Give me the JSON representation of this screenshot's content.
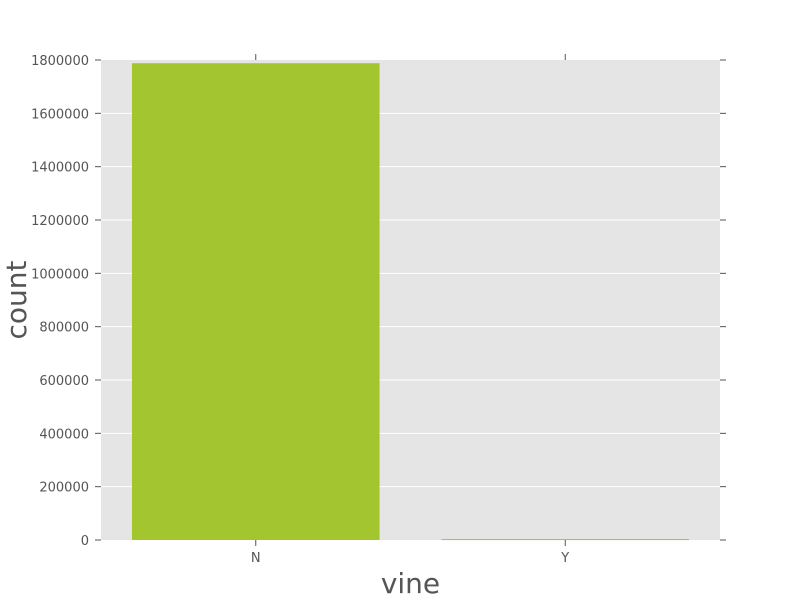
{
  "chart_data": {
    "type": "bar",
    "title": "",
    "xlabel": "vine",
    "ylabel": "count",
    "categories": [
      "N",
      "Y"
    ],
    "values": [
      1788000,
      3500
    ],
    "ylim": [
      0,
      1800000
    ],
    "yticks": [
      0,
      200000,
      400000,
      600000,
      800000,
      1000000,
      1200000,
      1400000,
      1600000,
      1800000
    ],
    "ytick_labels": [
      "0",
      "200000",
      "400000",
      "600000",
      "800000",
      "1000000",
      "1200000",
      "1400000",
      "1600000",
      "1800000"
    ],
    "grid": true,
    "legend": "none",
    "colors": {
      "bar": "#a3c52f",
      "plot_background": "#e5e5e5",
      "grid": "#ffffff",
      "text": "#555555",
      "ticks": "#555555"
    }
  }
}
